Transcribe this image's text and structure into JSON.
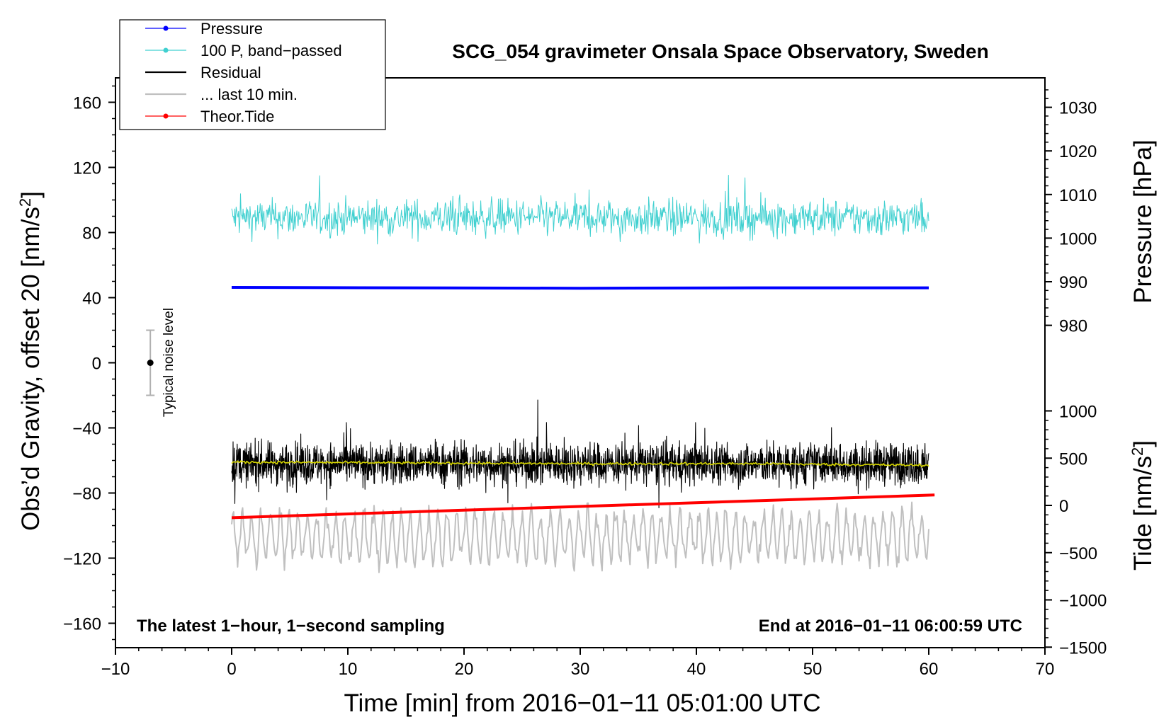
{
  "chart_data": {
    "type": "line",
    "title": "SCG_054 gravimeter Onsala Space Observatory, Sweden",
    "xlabel": "Time [min] from 2016−01−11 05:01:00 UTC",
    "ylabel_left": "Obs’d Gravity, offset 20 [nm/s",
    "ylabel_left_sup": "2",
    "ylabel_left_end": "]",
    "ylabel_right_pressure": "Pressure [hPa]",
    "ylabel_right_tide": "Tide [nm/s",
    "ylabel_right_tide_sup": "2",
    "ylabel_right_tide_end": "]",
    "xlim": [
      -10,
      70
    ],
    "ylim_left": [
      -175,
      175
    ],
    "x_ticks": [
      "−10",
      "0",
      "10",
      "20",
      "30",
      "40",
      "50",
      "60",
      "70"
    ],
    "y_ticks_left": [
      "160",
      "120",
      "80",
      "40",
      "0",
      "−40",
      "−80",
      "−120",
      "−160"
    ],
    "pressure_ticks": [
      "1030",
      "1020",
      "1010",
      "1000",
      "990",
      "980"
    ],
    "tide_ticks": [
      "1000",
      "500",
      "0",
      "−500",
      "−1000",
      "−1500"
    ],
    "annotation_left": "The latest 1−hour, 1−second sampling",
    "annotation_right": "End at 2016−01−11 06:00:59 UTC",
    "noise_label": "Typical noise level",
    "noise_bar": {
      "x": -7,
      "center": 0,
      "half_range": 20
    },
    "legend_position": "top-left",
    "legend": [
      {
        "label": "Pressure",
        "color": "#0000ff",
        "marker": true
      },
      {
        "label": "100 P, band−passed",
        "color": "#40d0d0",
        "marker": true
      },
      {
        "label": "Residual",
        "color": "#000000",
        "marker": false
      },
      {
        "label": "... last 10 min.",
        "color": "#c0c0c0",
        "marker": false
      },
      {
        "label": "Theor.Tide",
        "color": "#ff0000",
        "marker": true
      }
    ],
    "series": [
      {
        "name": "Pressure",
        "color": "#0000ff",
        "axis": "pressure_hPa",
        "x": [
          0,
          15,
          30,
          45,
          60
        ],
        "values": [
          988.7,
          988.6,
          988.5,
          988.6,
          988.6
        ]
      },
      {
        "name": "100 P, band−passed",
        "color": "#40d0d0",
        "axis": "left",
        "x_range": [
          0,
          60
        ],
        "mean": 89,
        "spread": 8
      },
      {
        "name": "Residual",
        "color": "#000000",
        "axis": "left",
        "x_range": [
          0,
          60
        ],
        "mean": -62,
        "spread": 9
      },
      {
        "name": "Residual smoothed",
        "color": "#d8d800",
        "axis": "left",
        "x": [
          0,
          15,
          30,
          45,
          60
        ],
        "values": [
          -61,
          -61.5,
          -62,
          -62,
          -63
        ]
      },
      {
        "name": "... last 10 min.",
        "color": "#c0c0c0",
        "axis": "left",
        "x_range": [
          0,
          60
        ],
        "mean": -107,
        "spread": 14
      },
      {
        "name": "Theor.Tide",
        "color": "#ff0000",
        "axis": "tide_nm_s2",
        "x": [
          0,
          60.5
        ],
        "values": [
          -130,
          110
        ]
      }
    ]
  }
}
